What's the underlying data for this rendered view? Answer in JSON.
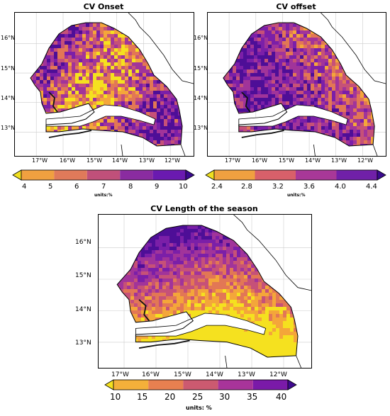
{
  "panels": [
    {
      "title": "CV Onset",
      "lat_labels": [
        "16°N",
        "15°N",
        "14°N",
        "13°N"
      ],
      "lon_labels": [
        "17°W",
        "16°W",
        "15°W",
        "14°W",
        "13°W",
        "12°W"
      ],
      "colorbar": {
        "ticks": [
          "4",
          "5",
          "6",
          "7",
          "8",
          "9",
          "10"
        ],
        "units": "units:%",
        "colors": [
          "#f0e020",
          "#f0a040",
          "#e07a5a",
          "#c0507a",
          "#8a2ca0",
          "#6a1ab0",
          "#3a0a90"
        ]
      },
      "palette": [
        "#f5e11f",
        "#f4a63a",
        "#e27755",
        "#c65178",
        "#a1349a",
        "#7b1fa8",
        "#4e0e97"
      ]
    },
    {
      "title": "CV offset",
      "lat_labels": [
        "16°N",
        "15°N",
        "14°N",
        "13°N"
      ],
      "lon_labels": [
        "17°W",
        "16°W",
        "15°W",
        "14°W",
        "13°W",
        "12°W"
      ],
      "colorbar": {
        "ticks": [
          "2.4",
          "2.8",
          "3.2",
          "3.6",
          "4.0",
          "4.4"
        ],
        "units": "units:%",
        "colors": [
          "#f0e020",
          "#f0a040",
          "#d8606a",
          "#a83898",
          "#7020a8",
          "#3a0a90"
        ]
      },
      "palette": [
        "#f5e11f",
        "#f4a63a",
        "#e27755",
        "#c65178",
        "#a1349a",
        "#7b1fa8",
        "#4e0e97"
      ]
    },
    {
      "title": "CV Length of the season",
      "lat_labels": [
        "16°N",
        "15°N",
        "14°N",
        "13°N"
      ],
      "lon_labels": [
        "17°W",
        "16°W",
        "15°W",
        "14°W",
        "13°W",
        "12°W"
      ],
      "colorbar": {
        "ticks": [
          "10",
          "15",
          "20",
          "25",
          "30",
          "35",
          "40"
        ],
        "units": "units: %",
        "colors": [
          "#f5e11f",
          "#f4b03a",
          "#e88050",
          "#cc5a70",
          "#a8349a",
          "#7a1aa8",
          "#3f0a90"
        ]
      },
      "palette": [
        "#f5e11f",
        "#f4a63a",
        "#e27755",
        "#c65178",
        "#a1349a",
        "#7b1fa8",
        "#4e0e97"
      ]
    }
  ]
}
